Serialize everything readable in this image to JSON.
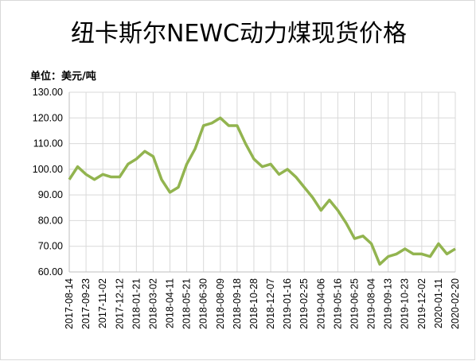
{
  "chart_data": {
    "type": "line",
    "title": "纽卡斯尔NEWC动力煤现货价格",
    "unit_label": "单位：美元/吨",
    "categories": [
      "2017-08-14",
      null,
      "2017-09-23",
      null,
      "2017-11-02",
      null,
      "2017-12-12",
      null,
      "2018-01-21",
      null,
      "2018-03-02",
      null,
      "2018-04-11",
      null,
      "2018-05-21",
      null,
      "2018-06-30",
      null,
      "2018-08-09",
      null,
      "2018-09-18",
      null,
      "2018-10-28",
      null,
      "2018-12-07",
      null,
      "2019-01-16",
      null,
      "2019-02-25",
      null,
      "2019-04-06",
      null,
      "2019-05-16",
      null,
      "2019-06-25",
      null,
      "2019-08-04",
      null,
      "2019-09-13",
      null,
      "2019-10-23",
      null,
      "2019-12-02",
      null,
      "2020-01-11",
      null,
      "2020-02-20"
    ],
    "series": [
      {
        "name": "NEWC",
        "color": "#92b44f",
        "values": [
          96,
          101,
          98,
          96,
          98,
          97,
          97,
          102,
          104,
          107,
          105,
          96,
          91,
          93,
          102,
          108,
          117,
          118,
          120,
          117,
          117,
          110,
          104,
          101,
          102,
          98,
          100,
          97,
          93,
          89,
          84,
          88,
          84,
          79,
          73,
          74,
          71,
          63,
          66,
          67,
          69,
          67,
          67,
          66,
          71,
          67,
          69
        ]
      }
    ],
    "ylim": [
      60,
      130
    ],
    "yticks": [
      {
        "value": 60,
        "label": "60.00"
      },
      {
        "value": 70,
        "label": "70.00"
      },
      {
        "value": 80,
        "label": "80.00"
      },
      {
        "value": 90,
        "label": "90.00"
      },
      {
        "value": 100,
        "label": "100.00"
      },
      {
        "value": 110,
        "label": "110.00"
      },
      {
        "value": 120,
        "label": "120.00"
      },
      {
        "value": 130,
        "label": "130.00"
      }
    ],
    "grid": true
  }
}
